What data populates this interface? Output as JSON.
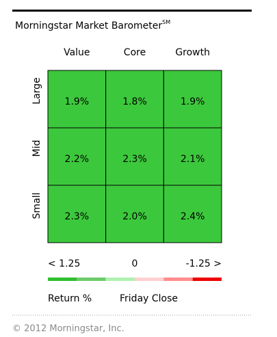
{
  "chart_data": {
    "type": "heatmap",
    "title": "Morningstar Market Barometer",
    "title_mark": "SM",
    "columns": [
      "Value",
      "Core",
      "Growth"
    ],
    "rows": [
      "Large",
      "Mid",
      "Small"
    ],
    "values": [
      [
        1.9,
        1.8,
        1.9
      ],
      [
        2.2,
        2.3,
        2.1
      ],
      [
        2.3,
        2.0,
        2.4
      ]
    ],
    "value_labels": [
      [
        "1.9%",
        "1.8%",
        "1.9%"
      ],
      [
        "2.2%",
        "2.3%",
        "2.1%"
      ],
      [
        "2.3%",
        "2.0%",
        "2.4%"
      ]
    ],
    "color": "#3cc83c",
    "legend": {
      "labels": [
        "< 1.25",
        "0",
        "-1.25 >"
      ],
      "colors": [
        "#2fbf2f",
        "#6ccb6c",
        "#b0f0b0",
        "#ffd0d0",
        "#ff8c8c",
        "#ee0000"
      ],
      "caption": "Return %",
      "note": "Friday Close"
    },
    "footer": "© 2012 Morningstar, Inc."
  }
}
